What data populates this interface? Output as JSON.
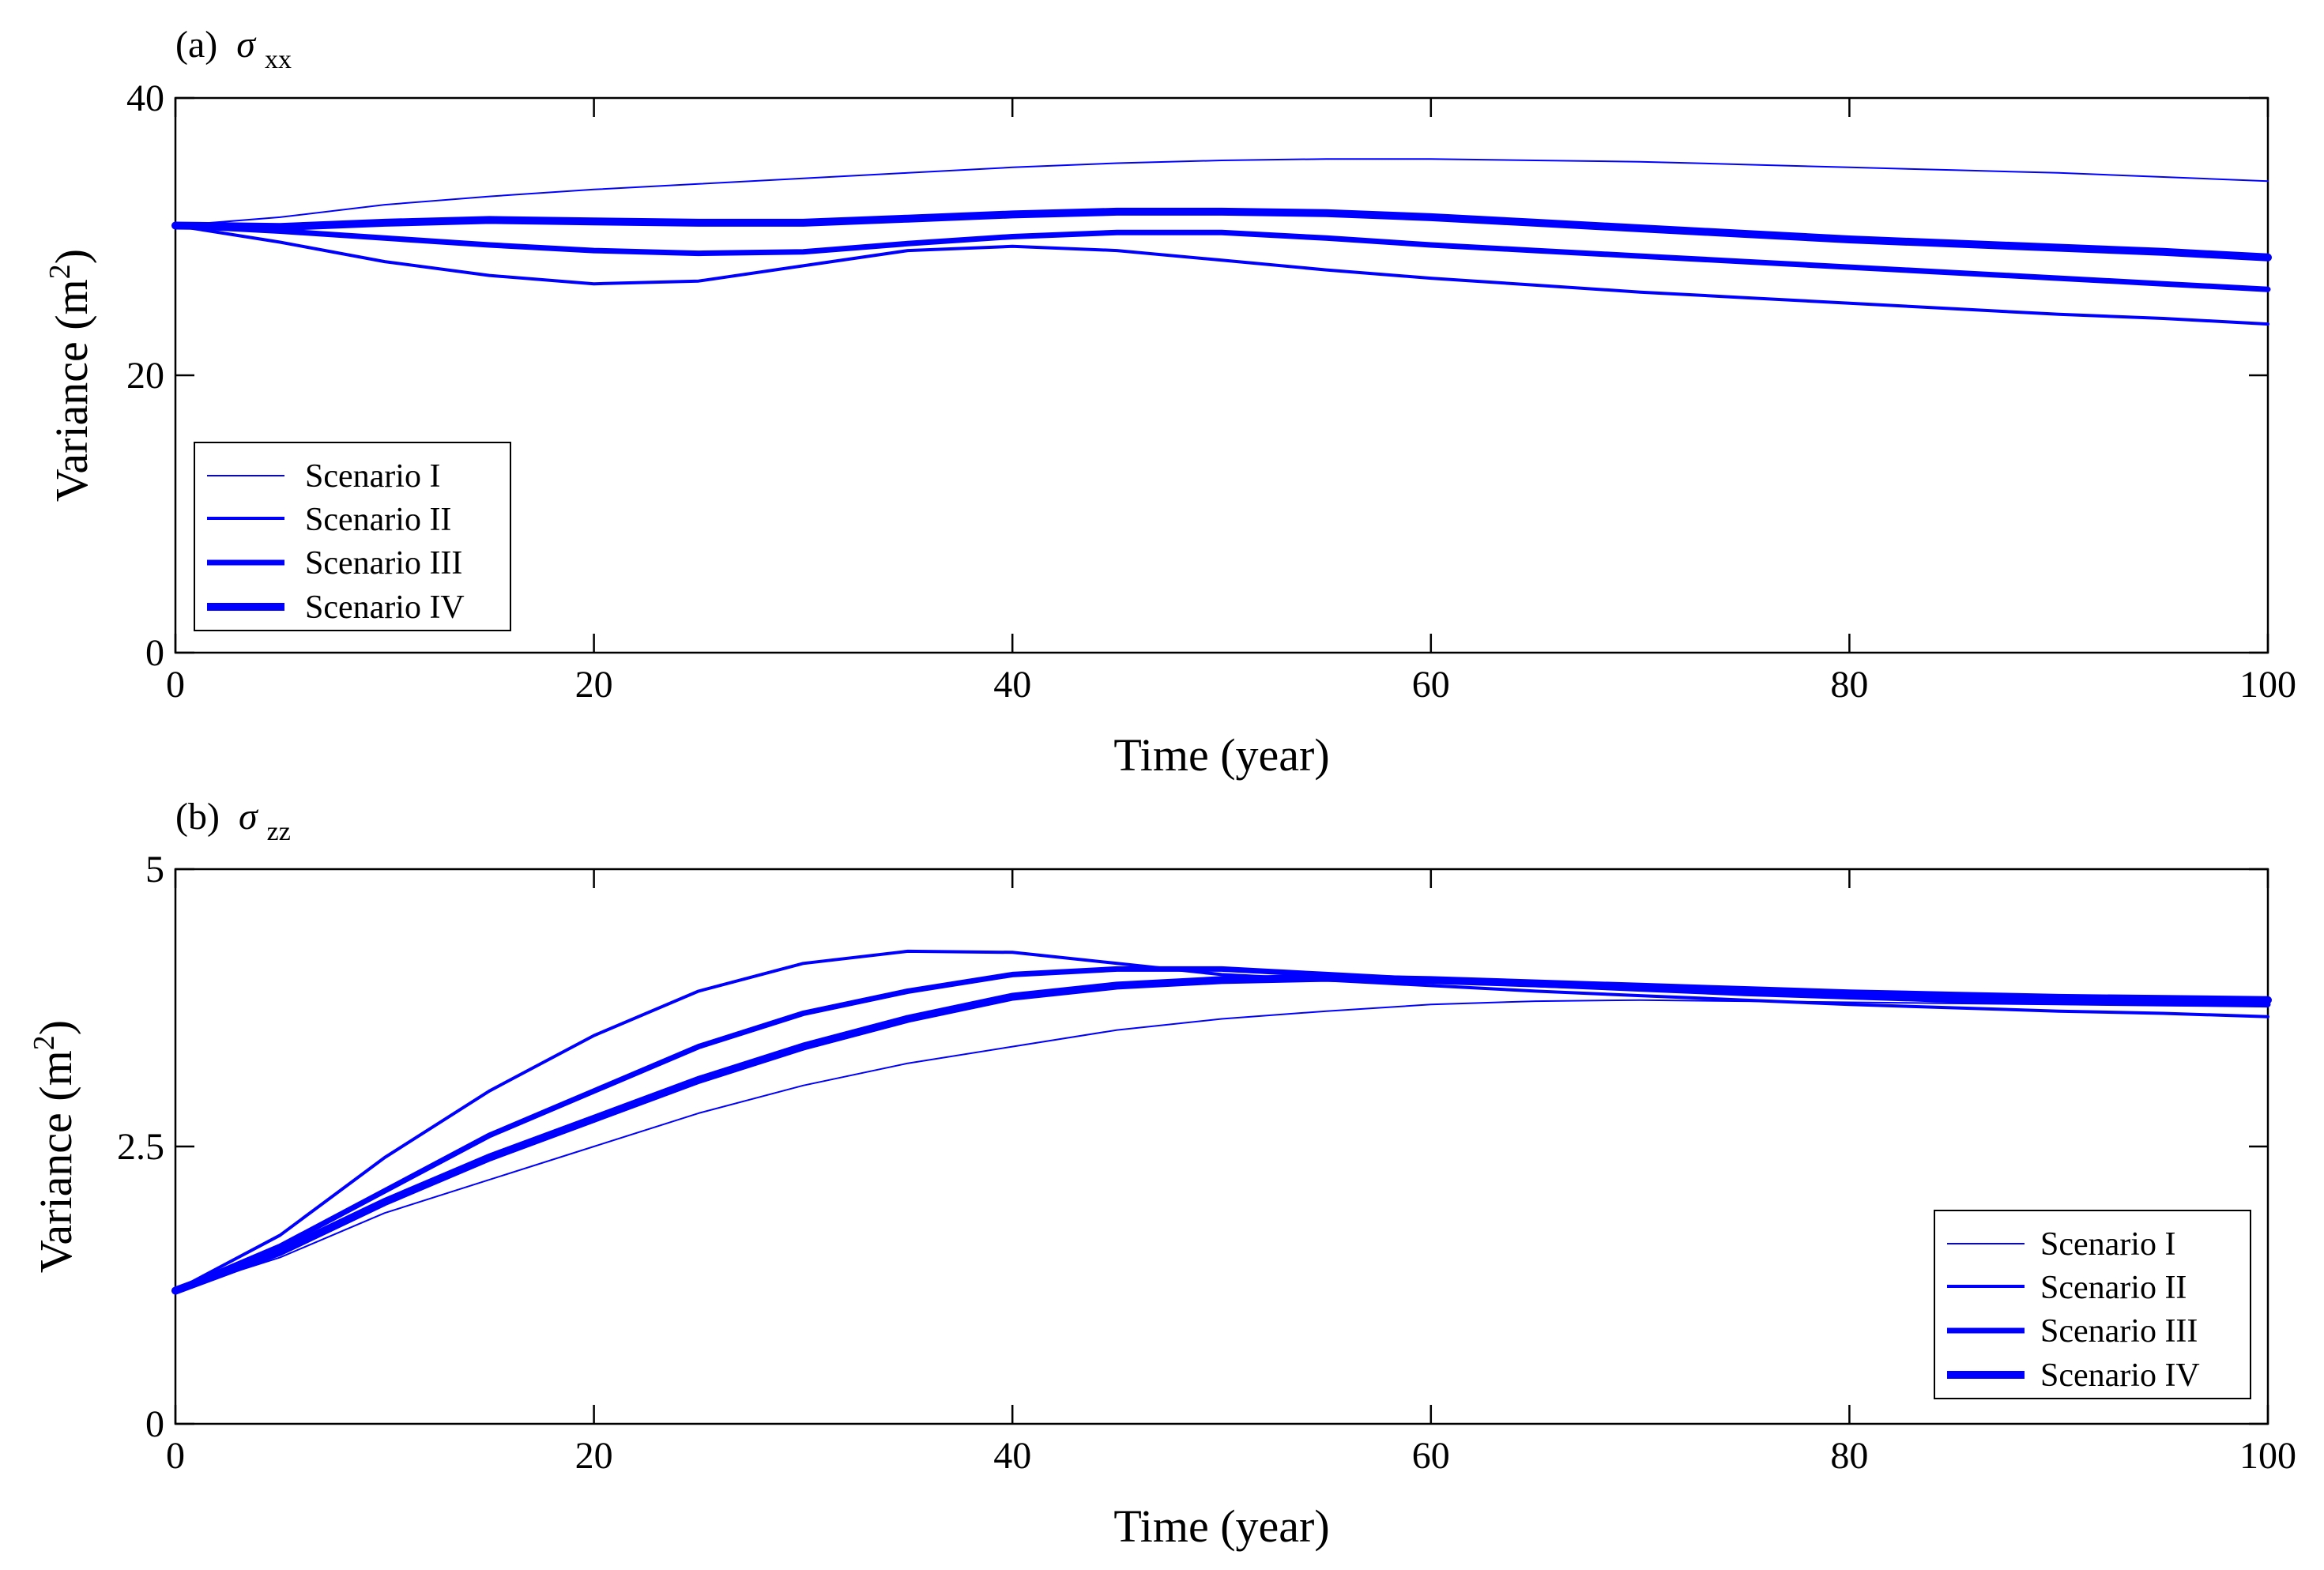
{
  "chart_data": [
    {
      "type": "line",
      "panel_label": "(a)",
      "panel_symbol": "σ",
      "panel_subscript": "xx",
      "xlabel": "Time (year)",
      "ylabel_prefix": "Variance (m",
      "ylabel_sup": "2",
      "ylabel_suffix": ")",
      "xlim": [
        0,
        100
      ],
      "ylim": [
        0,
        40
      ],
      "xticks": [
        0,
        20,
        40,
        60,
        80,
        100
      ],
      "yticks": [
        0,
        20,
        40
      ],
      "grid": false,
      "legend_position": "lower-left",
      "line_color": "#0000ff",
      "series": [
        {
          "name": "Scenario I",
          "x": [
            0,
            5,
            10,
            15,
            20,
            25,
            30,
            35,
            40,
            45,
            50,
            55,
            60,
            65,
            70,
            75,
            80,
            85,
            90,
            95,
            100
          ],
          "y": [
            30.8,
            31.4,
            32.3,
            32.9,
            33.4,
            33.8,
            34.2,
            34.6,
            35.0,
            35.3,
            35.5,
            35.6,
            35.6,
            35.5,
            35.4,
            35.2,
            35.0,
            34.8,
            34.6,
            34.3,
            34.0
          ]
        },
        {
          "name": "Scenario II",
          "x": [
            0,
            5,
            10,
            15,
            20,
            25,
            30,
            35,
            40,
            45,
            50,
            55,
            60,
            65,
            70,
            75,
            80,
            85,
            90,
            95,
            100
          ],
          "y": [
            30.8,
            29.6,
            28.2,
            27.2,
            26.6,
            26.8,
            27.9,
            29.0,
            29.3,
            29.0,
            28.3,
            27.6,
            27.0,
            26.5,
            26.0,
            25.6,
            25.2,
            24.8,
            24.4,
            24.1,
            23.7
          ]
        },
        {
          "name": "Scenario III",
          "x": [
            0,
            5,
            10,
            15,
            20,
            25,
            30,
            35,
            40,
            45,
            50,
            55,
            60,
            65,
            70,
            75,
            80,
            85,
            90,
            95,
            100
          ],
          "y": [
            30.8,
            30.4,
            29.9,
            29.4,
            29.0,
            28.8,
            28.9,
            29.5,
            30.0,
            30.3,
            30.3,
            29.9,
            29.4,
            29.0,
            28.6,
            28.2,
            27.8,
            27.4,
            27.0,
            26.6,
            26.2
          ]
        },
        {
          "name": "Scenario IV",
          "x": [
            0,
            5,
            10,
            15,
            20,
            25,
            30,
            35,
            40,
            45,
            50,
            55,
            60,
            65,
            70,
            75,
            80,
            85,
            90,
            95,
            100
          ],
          "y": [
            30.8,
            30.7,
            31.0,
            31.2,
            31.1,
            31.0,
            31.0,
            31.3,
            31.6,
            31.8,
            31.8,
            31.7,
            31.4,
            31.0,
            30.6,
            30.2,
            29.8,
            29.5,
            29.2,
            28.9,
            28.5
          ]
        }
      ]
    },
    {
      "type": "line",
      "panel_label": "(b)",
      "panel_symbol": "σ",
      "panel_subscript": "zz",
      "xlabel": "Time (year)",
      "ylabel_prefix": "Variance (m",
      "ylabel_sup": "2",
      "ylabel_suffix": ")",
      "xlim": [
        0,
        100
      ],
      "ylim": [
        0,
        5
      ],
      "xticks": [
        0,
        20,
        40,
        60,
        80,
        100
      ],
      "yticks": [
        0,
        2.5,
        5
      ],
      "grid": false,
      "legend_position": "lower-right",
      "line_color": "#0000ff",
      "series": [
        {
          "name": "Scenario I",
          "x": [
            0,
            5,
            10,
            15,
            20,
            25,
            30,
            35,
            40,
            45,
            50,
            55,
            60,
            65,
            70,
            75,
            80,
            85,
            90,
            95,
            100
          ],
          "y": [
            1.2,
            1.5,
            1.9,
            2.2,
            2.5,
            2.8,
            3.05,
            3.25,
            3.4,
            3.55,
            3.65,
            3.72,
            3.78,
            3.81,
            3.82,
            3.81,
            3.8,
            3.79,
            3.78,
            3.77,
            3.76
          ]
        },
        {
          "name": "Scenario II",
          "x": [
            0,
            5,
            10,
            15,
            20,
            25,
            30,
            35,
            40,
            45,
            50,
            55,
            60,
            65,
            70,
            75,
            80,
            85,
            90,
            95,
            100
          ],
          "y": [
            1.2,
            1.7,
            2.4,
            3.0,
            3.5,
            3.9,
            4.15,
            4.26,
            4.25,
            4.15,
            4.05,
            4.0,
            3.95,
            3.9,
            3.86,
            3.82,
            3.78,
            3.75,
            3.72,
            3.7,
            3.67
          ]
        },
        {
          "name": "Scenario III",
          "x": [
            0,
            5,
            10,
            15,
            20,
            25,
            30,
            35,
            40,
            45,
            50,
            55,
            60,
            65,
            70,
            75,
            80,
            85,
            90,
            95,
            100
          ],
          "y": [
            1.2,
            1.6,
            2.1,
            2.6,
            3.0,
            3.4,
            3.7,
            3.9,
            4.05,
            4.1,
            4.1,
            4.05,
            4.0,
            3.96,
            3.92,
            3.88,
            3.85,
            3.82,
            3.8,
            3.79,
            3.78
          ]
        },
        {
          "name": "Scenario IV",
          "x": [
            0,
            5,
            10,
            15,
            20,
            25,
            30,
            35,
            40,
            45,
            50,
            55,
            60,
            65,
            70,
            75,
            80,
            85,
            90,
            95,
            100
          ],
          "y": [
            1.2,
            1.55,
            2.0,
            2.4,
            2.75,
            3.1,
            3.4,
            3.65,
            3.85,
            3.95,
            4.0,
            4.02,
            4.0,
            3.97,
            3.94,
            3.91,
            3.88,
            3.86,
            3.84,
            3.83,
            3.82
          ]
        }
      ]
    }
  ]
}
